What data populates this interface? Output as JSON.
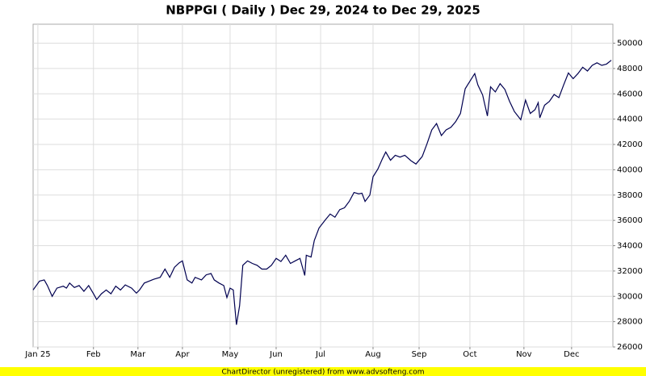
{
  "chart_data": {
    "type": "line",
    "title": "NBPPGI ( Daily ) Dec 29, 2024 to Dec 29, 2025",
    "footer": "ChartDirector (unregistered) from www.advsofteng.com",
    "xlim": [
      0,
      365
    ],
    "xticks": [
      {
        "value": 3,
        "label": "Jan 25"
      },
      {
        "value": 38,
        "label": "Feb"
      },
      {
        "value": 66,
        "label": "Mar"
      },
      {
        "value": 94,
        "label": "Apr"
      },
      {
        "value": 124,
        "label": "May"
      },
      {
        "value": 153,
        "label": "Jun"
      },
      {
        "value": 181,
        "label": "Jul"
      },
      {
        "value": 214,
        "label": "Aug"
      },
      {
        "value": 243,
        "label": "Sep"
      },
      {
        "value": 275,
        "label": "Oct"
      },
      {
        "value": 309,
        "label": "Nov"
      },
      {
        "value": 339,
        "label": "Dec"
      }
    ],
    "ylim": [
      26000,
      51500
    ],
    "yticks": [
      26000,
      28000,
      30000,
      32000,
      34000,
      36000,
      38000,
      40000,
      42000,
      44000,
      46000,
      48000,
      50000
    ],
    "grid": true,
    "x": [
      0,
      4,
      7,
      9,
      12,
      15,
      19,
      21,
      23,
      26,
      29,
      32,
      35,
      38,
      40,
      43,
      46,
      49,
      52,
      55,
      58,
      62,
      65,
      67,
      70,
      73,
      76,
      80,
      83,
      86,
      89,
      92,
      94,
      97,
      100,
      102,
      106,
      109,
      112,
      114,
      117,
      120,
      122,
      124,
      126,
      128,
      130,
      132,
      135,
      138,
      141,
      144,
      147,
      150,
      153,
      156,
      159,
      162,
      165,
      168,
      171,
      172,
      175,
      177,
      180,
      184,
      187,
      190,
      193,
      196,
      199,
      202,
      205,
      207,
      209,
      212,
      214,
      217,
      220,
      222,
      225,
      228,
      231,
      234,
      238,
      241,
      245,
      248,
      251,
      254,
      257,
      260,
      263,
      266,
      269,
      272,
      275,
      278,
      280,
      283,
      286,
      288,
      291,
      294,
      297,
      300,
      303,
      307,
      310,
      313,
      316,
      318,
      319,
      322,
      325,
      328,
      331,
      334,
      337,
      340,
      343,
      346,
      349,
      352,
      355,
      358,
      361,
      364
    ],
    "series": [
      {
        "name": "NBPPGI",
        "color": "#000050",
        "values": [
          30500,
          31200,
          31300,
          30850,
          30000,
          30650,
          30800,
          30650,
          31050,
          30700,
          30850,
          30400,
          30850,
          30200,
          29750,
          30200,
          30500,
          30200,
          30800,
          30500,
          30900,
          30650,
          30250,
          30500,
          31050,
          31200,
          31350,
          31500,
          32150,
          31500,
          32300,
          32650,
          32800,
          31300,
          31050,
          31500,
          31300,
          31700,
          31800,
          31300,
          31050,
          30850,
          29900,
          30650,
          30500,
          27750,
          29250,
          32450,
          32800,
          32600,
          32450,
          32150,
          32150,
          32450,
          33000,
          32750,
          33250,
          32600,
          32800,
          33000,
          31650,
          33250,
          33100,
          34400,
          35400,
          36050,
          36500,
          36250,
          36850,
          37000,
          37500,
          38200,
          38100,
          38150,
          37500,
          38000,
          39450,
          40050,
          40900,
          41400,
          40750,
          41150,
          41000,
          41150,
          40700,
          40450,
          41050,
          42050,
          43150,
          43650,
          42700,
          43150,
          43350,
          43800,
          44450,
          46400,
          47000,
          47600,
          46700,
          45900,
          44250,
          46550,
          46150,
          46800,
          46350,
          45400,
          44600,
          43950,
          45500,
          44450,
          44750,
          45300,
          44100,
          45100,
          45400,
          45950,
          45700,
          46700,
          47650,
          47200,
          47600,
          48100,
          47800,
          48250,
          48450,
          48250,
          48350,
          48650
        ]
      }
    ]
  }
}
